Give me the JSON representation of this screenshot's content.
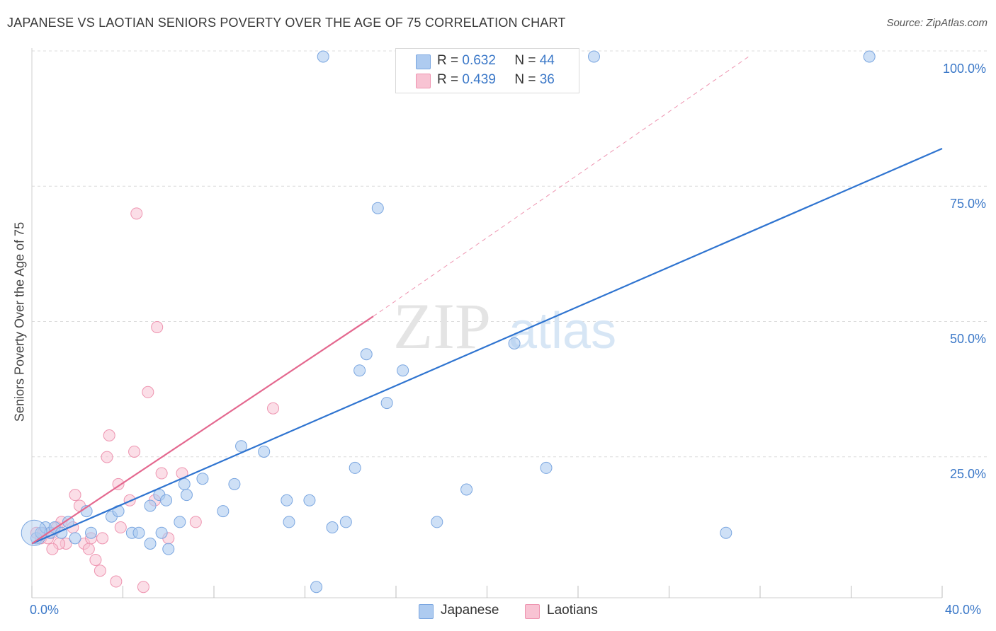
{
  "title": "JAPANESE VS LAOTIAN SENIORS POVERTY OVER THE AGE OF 75 CORRELATION CHART",
  "source": "Source: ZipAtlas.com",
  "watermark": {
    "zip": "ZIP",
    "atlas": "atlas"
  },
  "legend": {
    "japanese": {
      "r_label": "R =",
      "r_value": "0.632",
      "n_label": "N =",
      "n_value": "44"
    },
    "laotians": {
      "r_label": "R =",
      "r_value": "0.439",
      "n_label": "N =",
      "n_value": "36"
    }
  },
  "colors": {
    "japanese_fill": "#aecbf0",
    "japanese_stroke": "#7aa6e0",
    "japanese_line": "#2f74d0",
    "laotians_fill": "#f8c3d3",
    "laotians_stroke": "#ee94b0",
    "laotians_line": "#e4688f",
    "tick_text": "#3b78c8",
    "grid": "#dcdcdc"
  },
  "chart_data": {
    "type": "scatter",
    "title": "JAPANESE VS LAOTIAN SENIORS POVERTY OVER THE AGE OF 75 CORRELATION CHART",
    "xlabel": "",
    "ylabel": "Seniors Poverty Over the Age of 75",
    "xlim": [
      0,
      40
    ],
    "ylim": [
      0,
      100
    ],
    "x_tick_labels": [
      {
        "value": 0,
        "label": "0.0%"
      },
      {
        "value": 40,
        "label": "40.0%"
      }
    ],
    "y_tick_labels": [
      {
        "value": 100,
        "label": "100.0%"
      },
      {
        "value": 75,
        "label": "75.0%"
      },
      {
        "value": 50,
        "label": "50.0%"
      },
      {
        "value": 25,
        "label": "25.0%"
      }
    ],
    "series": [
      {
        "name": "Japanese",
        "points": [
          [
            0.2,
            11
          ],
          [
            0.4,
            12
          ],
          [
            0.6,
            13
          ],
          [
            0.8,
            12
          ],
          [
            1.0,
            13
          ],
          [
            1.3,
            12
          ],
          [
            1.6,
            14
          ],
          [
            1.9,
            11
          ],
          [
            2.4,
            16
          ],
          [
            2.6,
            12
          ],
          [
            3.5,
            15
          ],
          [
            3.8,
            16
          ],
          [
            4.4,
            12
          ],
          [
            4.7,
            12
          ],
          [
            5.2,
            10
          ],
          [
            6.0,
            9
          ],
          [
            5.7,
            12
          ],
          [
            5.2,
            17
          ],
          [
            5.6,
            19
          ],
          [
            5.9,
            18
          ],
          [
            6.5,
            14
          ],
          [
            6.7,
            21
          ],
          [
            6.8,
            19
          ],
          [
            7.5,
            22
          ],
          [
            8.4,
            16
          ],
          [
            8.9,
            21
          ],
          [
            9.2,
            28
          ],
          [
            10.2,
            27
          ],
          [
            11.2,
            18
          ],
          [
            11.3,
            14
          ],
          [
            12.2,
            18
          ],
          [
            12.5,
            2
          ],
          [
            13.2,
            13
          ],
          [
            13.8,
            14
          ],
          [
            14.2,
            24
          ],
          [
            14.4,
            42
          ],
          [
            14.7,
            45
          ],
          [
            15.6,
            36
          ],
          [
            16.3,
            42
          ],
          [
            17.8,
            14
          ],
          [
            19.1,
            20
          ],
          [
            21.2,
            47
          ],
          [
            22.6,
            24
          ],
          [
            30.5,
            12
          ]
        ],
        "outliers_top": [
          [
            12.8,
            100
          ],
          [
            24.7,
            100
          ],
          [
            36.8,
            100
          ],
          [
            15.2,
            72
          ]
        ],
        "trend": {
          "x0": 0,
          "y0": 10,
          "x1": 40,
          "y1": 83
        }
      },
      {
        "name": "Laotians",
        "points": [
          [
            0.2,
            12
          ],
          [
            0.4,
            11
          ],
          [
            0.5,
            12
          ],
          [
            0.7,
            11
          ],
          [
            0.9,
            12
          ],
          [
            1.1,
            13
          ],
          [
            1.3,
            14
          ],
          [
            1.5,
            10
          ],
          [
            1.8,
            13
          ],
          [
            1.9,
            19
          ],
          [
            2.1,
            17
          ],
          [
            2.3,
            10
          ],
          [
            2.5,
            9
          ],
          [
            2.6,
            11
          ],
          [
            2.8,
            7
          ],
          [
            3.0,
            5
          ],
          [
            3.1,
            11
          ],
          [
            3.3,
            26
          ],
          [
            3.4,
            30
          ],
          [
            3.7,
            3
          ],
          [
            3.8,
            21
          ],
          [
            4.3,
            18
          ],
          [
            4.5,
            27
          ],
          [
            4.6,
            71
          ],
          [
            4.9,
            2
          ],
          [
            5.1,
            38
          ],
          [
            5.4,
            18
          ],
          [
            5.5,
            50
          ],
          [
            5.7,
            23
          ],
          [
            6.0,
            11
          ],
          [
            6.6,
            23
          ],
          [
            7.2,
            14
          ],
          [
            10.6,
            35
          ],
          [
            1.2,
            10
          ],
          [
            0.9,
            9
          ],
          [
            3.9,
            13
          ]
        ],
        "trend": {
          "x0": 0,
          "y0": 10,
          "x1": 15,
          "y1": 52,
          "dash_x1": 31.5,
          "dash_y1": 100
        }
      }
    ],
    "legend_position": "top-center",
    "grid": true
  },
  "bottom_legend": {
    "japanese": "Japanese",
    "laotians": "Laotians"
  }
}
